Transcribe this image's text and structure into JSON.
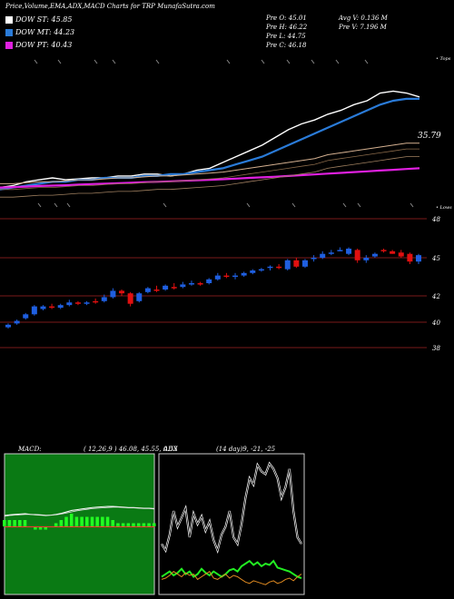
{
  "header": {
    "title": "Price,Volume,EMA,ADX,MACD Charts for TRP MunafaSutra.com"
  },
  "legend": [
    {
      "label": "DOW ST: 45.85",
      "color": "#ffffff"
    },
    {
      "label": "DOW MT: 44.23",
      "color": "#2a7bd8"
    },
    {
      "label": "DOW PT: 40.43",
      "color": "#e020e0"
    }
  ],
  "stats": {
    "prev_open": "Pre   O: 45.01",
    "prev_high": "Pre   H: 46.22",
    "prev_low": "Pre   L: 44.75",
    "prev_close": "Pre   C: 46.18",
    "avg_volume": "Avg V: 0.136   M",
    "prev_volume": "Pre   V: 7.196   M"
  },
  "colors": {
    "up": "#1f5fe0",
    "down": "#e01010",
    "grid": "#7a1a1a",
    "ema_short": "#ffffff",
    "ema_mid": "#2a7bd8",
    "ema_long": "#e020e0",
    "macd_bg": "#0a7a14",
    "macd_hist": "#22ff22"
  },
  "chart_data": [
    {
      "type": "line",
      "name": "ema-panel",
      "y_axis_labels": [
        "35.79"
      ],
      "top_label": "• Tops",
      "bottom_label": "• Lows",
      "series": [
        {
          "values": [
            34.6,
            34.7,
            34.9,
            35.0,
            35.1,
            35.0,
            35.05,
            35.1,
            35.1,
            35.2,
            35.2,
            35.3,
            35.3,
            35.2,
            35.3,
            35.5,
            35.6,
            35.9,
            36.2,
            36.5,
            36.8,
            37.2,
            37.6,
            37.9,
            38.1,
            38.4,
            38.6,
            38.9,
            39.1,
            39.5,
            39.6,
            39.5,
            39.3
          ]
        },
        {
          "values": [
            34.5,
            34.6,
            34.7,
            34.8,
            34.9,
            34.9,
            35.0,
            35.0,
            35.1,
            35.1,
            35.1,
            35.2,
            35.2,
            35.3,
            35.3,
            35.4,
            35.5,
            35.6,
            35.8,
            36.0,
            36.2,
            36.5,
            36.8,
            37.1,
            37.4,
            37.7,
            38.0,
            38.3,
            38.6,
            38.9,
            39.1,
            39.2,
            39.2
          ]
        },
        {
          "values": [
            34.8,
            34.8,
            34.85,
            34.9,
            34.9,
            34.95,
            35.0,
            35.0,
            35.05,
            35.1,
            35.1,
            35.15,
            35.2,
            35.2,
            35.25,
            35.3,
            35.35,
            35.4,
            35.5,
            35.6,
            35.7,
            35.8,
            35.9,
            36.0,
            36.1,
            36.3,
            36.4,
            36.5,
            36.6,
            36.7,
            36.8,
            36.9,
            36.9
          ]
        },
        {
          "values": [
            34.6,
            34.62,
            34.65,
            34.68,
            34.7,
            34.72,
            34.75,
            34.78,
            34.8,
            34.82,
            34.85,
            34.88,
            34.9,
            34.92,
            34.95,
            34.98,
            35.0,
            35.03,
            35.06,
            35.1,
            35.13,
            35.16,
            35.2,
            35.24,
            35.28,
            35.32,
            35.36,
            35.4,
            35.44,
            35.48,
            35.52,
            35.56,
            35.6
          ]
        }
      ]
    },
    {
      "type": "candlestick",
      "name": "price-panel",
      "y_ticks": [
        48,
        45,
        42,
        40,
        38
      ],
      "candles": [
        {
          "o": 39.6,
          "h": 39.9,
          "l": 39.5,
          "c": 39.8,
          "up": true
        },
        {
          "o": 39.9,
          "h": 40.2,
          "l": 39.8,
          "c": 40.1,
          "up": true
        },
        {
          "o": 40.3,
          "h": 40.7,
          "l": 40.2,
          "c": 40.6,
          "up": true
        },
        {
          "o": 40.6,
          "h": 41.3,
          "l": 40.5,
          "c": 41.2,
          "up": true
        },
        {
          "o": 41.0,
          "h": 41.3,
          "l": 40.9,
          "c": 41.2,
          "up": true
        },
        {
          "o": 41.2,
          "h": 41.4,
          "l": 41.0,
          "c": 41.1,
          "up": false
        },
        {
          "o": 41.1,
          "h": 41.4,
          "l": 41.0,
          "c": 41.3,
          "up": true
        },
        {
          "o": 41.3,
          "h": 41.7,
          "l": 41.2,
          "c": 41.5,
          "up": true
        },
        {
          "o": 41.5,
          "h": 41.6,
          "l": 41.3,
          "c": 41.4,
          "up": false
        },
        {
          "o": 41.4,
          "h": 41.6,
          "l": 41.3,
          "c": 41.5,
          "up": true
        },
        {
          "o": 41.5,
          "h": 41.8,
          "l": 41.4,
          "c": 41.6,
          "up": false
        },
        {
          "o": 41.6,
          "h": 42.1,
          "l": 41.5,
          "c": 41.9,
          "up": true
        },
        {
          "o": 41.9,
          "h": 42.6,
          "l": 41.8,
          "c": 42.4,
          "up": true
        },
        {
          "o": 42.4,
          "h": 42.5,
          "l": 42.0,
          "c": 42.2,
          "up": false
        },
        {
          "o": 42.2,
          "h": 42.3,
          "l": 41.2,
          "c": 41.4,
          "up": false
        },
        {
          "o": 41.6,
          "h": 42.3,
          "l": 41.5,
          "c": 42.2,
          "up": true
        },
        {
          "o": 42.3,
          "h": 42.7,
          "l": 42.2,
          "c": 42.6,
          "up": true
        },
        {
          "o": 42.5,
          "h": 42.8,
          "l": 42.3,
          "c": 42.5,
          "up": false
        },
        {
          "o": 42.5,
          "h": 42.9,
          "l": 42.4,
          "c": 42.8,
          "up": true
        },
        {
          "o": 42.7,
          "h": 43.0,
          "l": 42.5,
          "c": 42.6,
          "up": false
        },
        {
          "o": 42.7,
          "h": 43.1,
          "l": 42.6,
          "c": 42.9,
          "up": true
        },
        {
          "o": 42.9,
          "h": 43.2,
          "l": 42.8,
          "c": 43.0,
          "up": true
        },
        {
          "o": 43.0,
          "h": 43.1,
          "l": 42.8,
          "c": 42.9,
          "up": false
        },
        {
          "o": 43.0,
          "h": 43.4,
          "l": 42.9,
          "c": 43.3,
          "up": true
        },
        {
          "o": 43.3,
          "h": 43.8,
          "l": 43.2,
          "c": 43.6,
          "up": true
        },
        {
          "o": 43.6,
          "h": 43.8,
          "l": 43.4,
          "c": 43.5,
          "up": false
        },
        {
          "o": 43.5,
          "h": 43.8,
          "l": 43.3,
          "c": 43.6,
          "up": true
        },
        {
          "o": 43.6,
          "h": 43.9,
          "l": 43.5,
          "c": 43.8,
          "up": true
        },
        {
          "o": 43.8,
          "h": 44.1,
          "l": 43.7,
          "c": 44.0,
          "up": true
        },
        {
          "o": 44.0,
          "h": 44.2,
          "l": 43.9,
          "c": 44.1,
          "up": true
        },
        {
          "o": 44.2,
          "h": 44.4,
          "l": 44.0,
          "c": 44.3,
          "up": true
        },
        {
          "o": 44.3,
          "h": 44.5,
          "l": 44.1,
          "c": 44.2,
          "up": false
        },
        {
          "o": 44.1,
          "h": 44.9,
          "l": 44.0,
          "c": 44.8,
          "up": true
        },
        {
          "o": 44.8,
          "h": 45.0,
          "l": 44.2,
          "c": 44.3,
          "up": false
        },
        {
          "o": 44.3,
          "h": 44.9,
          "l": 44.2,
          "c": 44.8,
          "up": true
        },
        {
          "o": 44.9,
          "h": 45.2,
          "l": 44.7,
          "c": 45.0,
          "up": true
        },
        {
          "o": 45.0,
          "h": 45.5,
          "l": 44.9,
          "c": 45.3,
          "up": true
        },
        {
          "o": 45.3,
          "h": 45.6,
          "l": 45.2,
          "c": 45.4,
          "up": true
        },
        {
          "o": 45.6,
          "h": 45.8,
          "l": 45.5,
          "c": 45.6,
          "up": true
        },
        {
          "o": 45.3,
          "h": 45.8,
          "l": 45.2,
          "c": 45.7,
          "up": true
        },
        {
          "o": 45.6,
          "h": 45.7,
          "l": 44.6,
          "c": 44.8,
          "up": false
        },
        {
          "o": 44.8,
          "h": 45.2,
          "l": 44.6,
          "c": 45.0,
          "up": true
        },
        {
          "o": 45.1,
          "h": 45.4,
          "l": 45.0,
          "c": 45.3,
          "up": true
        },
        {
          "o": 45.6,
          "h": 45.7,
          "l": 45.4,
          "c": 45.5,
          "up": false
        },
        {
          "o": 45.5,
          "h": 45.6,
          "l": 45.3,
          "c": 45.3,
          "up": false
        },
        {
          "o": 45.4,
          "h": 45.6,
          "l": 45.0,
          "c": 45.1,
          "up": false
        },
        {
          "o": 45.3,
          "h": 45.4,
          "l": 44.5,
          "c": 44.7,
          "up": false
        },
        {
          "o": 44.7,
          "h": 45.3,
          "l": 44.5,
          "c": 45.2,
          "up": true
        }
      ]
    },
    {
      "type": "area",
      "name": "macd-panel",
      "title": "MACD:",
      "params": "( 12,26,9 ) 46.08, 45.55, 0.53",
      "line_a": [
        0.3,
        0.32,
        0.33,
        0.34,
        0.35,
        0.33,
        0.32,
        0.31,
        0.3,
        0.31,
        0.33,
        0.36,
        0.4,
        0.44,
        0.46,
        0.48,
        0.5,
        0.52,
        0.53,
        0.54,
        0.55,
        0.55,
        0.54,
        0.53,
        0.52,
        0.52,
        0.51,
        0.5,
        0.5,
        0.49
      ],
      "line_b": [
        0.28,
        0.3,
        0.31,
        0.32,
        0.33,
        0.33,
        0.33,
        0.32,
        0.31,
        0.31,
        0.32,
        0.34,
        0.37,
        0.4,
        0.43,
        0.45,
        0.47,
        0.49,
        0.5,
        0.51,
        0.52,
        0.53,
        0.53,
        0.52,
        0.51,
        0.51,
        0.5,
        0.49,
        0.49,
        0.48
      ],
      "hist": [
        0.02,
        0.02,
        0.02,
        0.02,
        0.02,
        0.0,
        -0.01,
        -0.01,
        -0.01,
        0.0,
        0.01,
        0.02,
        0.03,
        0.04,
        0.03,
        0.03,
        0.03,
        0.03,
        0.03,
        0.03,
        0.03,
        0.02,
        0.01,
        0.01,
        0.01,
        0.01,
        0.01,
        0.01,
        0.01,
        0.01
      ]
    },
    {
      "type": "line",
      "name": "adx-panel",
      "title": "ADX",
      "params": "(14 day)9, -21, -25",
      "adx": [
        35,
        30,
        42,
        60,
        48,
        55,
        62,
        40,
        58,
        50,
        56,
        45,
        52,
        38,
        30,
        42,
        48,
        60,
        40,
        35,
        50,
        70,
        85,
        80,
        95,
        90,
        88,
        96,
        92,
        85,
        70,
        78,
        92,
        60,
        40,
        35
      ],
      "plus_di": [
        10,
        12,
        14,
        11,
        13,
        16,
        12,
        14,
        10,
        12,
        16,
        13,
        11,
        14,
        12,
        10,
        12,
        15,
        16,
        14,
        18,
        20,
        22,
        19,
        21,
        18,
        20,
        19,
        22,
        17,
        16,
        15,
        14,
        12,
        10,
        9
      ],
      "minus_di": [
        8,
        9,
        11,
        14,
        12,
        10,
        13,
        11,
        12,
        8,
        10,
        12,
        14,
        9,
        8,
        10,
        12,
        9,
        11,
        10,
        8,
        6,
        5,
        7,
        6,
        5,
        4,
        6,
        7,
        5,
        6,
        8,
        9,
        7,
        10,
        12
      ]
    }
  ]
}
